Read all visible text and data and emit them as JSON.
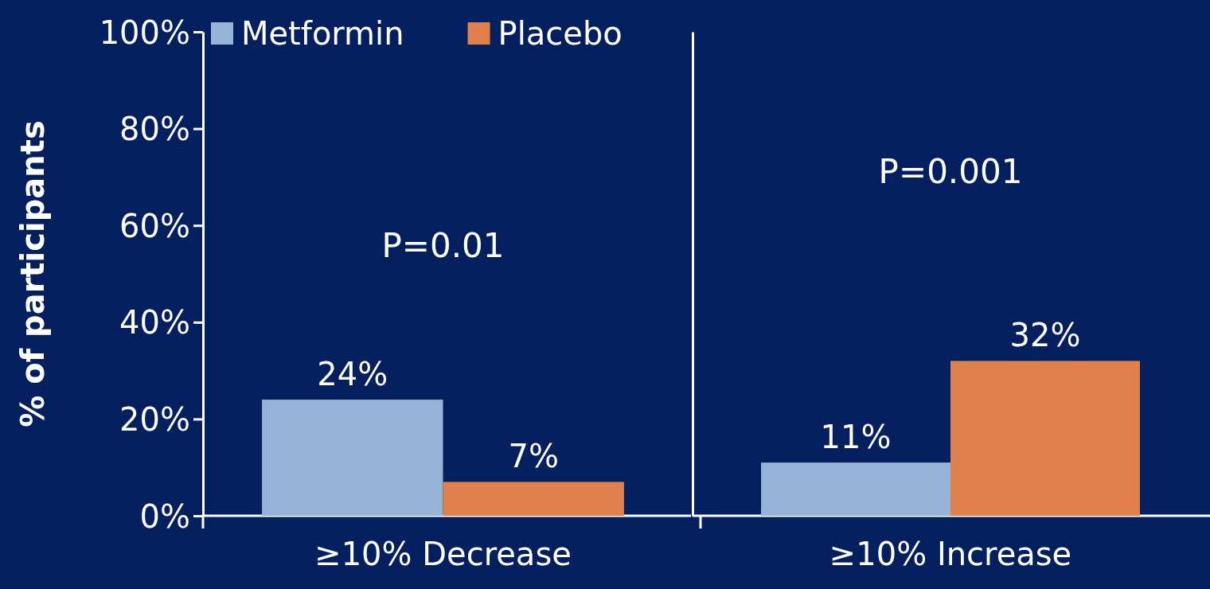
{
  "chart_data": [
    {
      "type": "bar",
      "ylabel": "% of participants",
      "categories": [
        "≥10% Decrease"
      ],
      "series": [
        {
          "name": "Metformin",
          "color": "#95b3d7",
          "values": [
            24
          ],
          "value_labels": [
            "24%"
          ]
        },
        {
          "name": "Placebo",
          "color": "#e0804a",
          "values": [
            7
          ],
          "value_labels": [
            "7%"
          ]
        }
      ],
      "ylim": [
        0,
        100
      ],
      "yticks": [
        {
          "value": 0,
          "label": "0%"
        },
        {
          "value": 20,
          "label": "20%"
        },
        {
          "value": 40,
          "label": "40%"
        },
        {
          "value": 60,
          "label": "60%"
        },
        {
          "value": 80,
          "label": "80%"
        },
        {
          "value": 100,
          "label": "100%"
        }
      ],
      "annotations": [
        "P=0.01"
      ],
      "legend": "top left",
      "grid": false
    },
    {
      "type": "bar",
      "categories": [
        "≥10% Increase"
      ],
      "series": [
        {
          "color": "#95b3d7",
          "values": [
            11
          ],
          "value_labels": [
            "11%"
          ]
        },
        {
          "color": "#e0804a",
          "values": [
            32
          ],
          "value_labels": [
            "32%"
          ]
        }
      ],
      "ylim": [
        0,
        100
      ],
      "annotations": [
        "P=0.001"
      ],
      "tick_labels": "x",
      "grid": false
    }
  ]
}
